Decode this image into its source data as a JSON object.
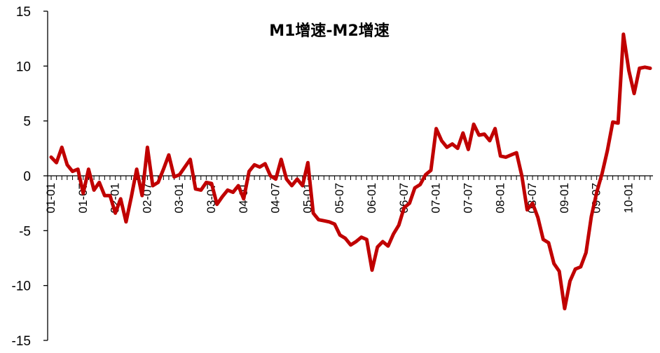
{
  "chart_data": {
    "type": "line",
    "title": "M1增速-M2增速",
    "xlabel": "",
    "ylabel": "",
    "ylim": [
      -15,
      15
    ],
    "yticks": [
      15,
      10,
      5,
      0,
      -5,
      -10,
      -15
    ],
    "xtick_labels": [
      "01-01",
      "01-07",
      "02-01",
      "02-07",
      "03-01",
      "03-07",
      "04-01",
      "04-07",
      "05-01",
      "05-07",
      "06-01",
      "06-07",
      "07-01",
      "07-07",
      "08-01",
      "08-07",
      "09-01",
      "09-07",
      "10-01"
    ],
    "grid": false,
    "legend": "none",
    "series": [
      {
        "color": "#c00000",
        "x": [
          "01-01",
          "01-02",
          "01-03",
          "01-04",
          "01-05",
          "01-06",
          "01-07",
          "01-08",
          "01-09",
          "01-10",
          "01-11",
          "01-12",
          "02-01",
          "02-02",
          "02-03",
          "02-04",
          "02-05",
          "02-06",
          "02-07",
          "02-08",
          "02-09",
          "02-10",
          "02-11",
          "02-12",
          "03-01",
          "03-02",
          "03-03",
          "03-04",
          "03-05",
          "03-06",
          "03-07",
          "03-08",
          "03-09",
          "03-10",
          "03-11",
          "03-12",
          "04-01",
          "04-02",
          "04-03",
          "04-04",
          "04-05",
          "04-06",
          "04-07",
          "04-08",
          "04-09",
          "04-10",
          "04-11",
          "04-12",
          "05-01",
          "05-02",
          "05-03",
          "05-04",
          "05-05",
          "05-06",
          "05-07",
          "05-08",
          "05-09",
          "05-10",
          "05-11",
          "05-12",
          "06-01",
          "06-02",
          "06-03",
          "06-04",
          "06-05",
          "06-06",
          "06-07",
          "06-08",
          "06-09",
          "06-10",
          "06-11",
          "06-12",
          "07-01",
          "07-02",
          "07-03",
          "07-04",
          "07-05",
          "07-06",
          "07-07",
          "07-08",
          "07-09",
          "07-10",
          "07-11",
          "07-12",
          "08-01",
          "08-02",
          "08-03",
          "08-04",
          "08-05",
          "08-06",
          "08-07",
          "08-08",
          "08-09",
          "08-10",
          "08-11",
          "08-12",
          "09-01",
          "09-02",
          "09-03",
          "09-04",
          "09-05",
          "09-06",
          "09-07",
          "09-08",
          "09-09",
          "09-10",
          "09-11",
          "09-12",
          "10-01",
          "10-02",
          "10-03",
          "10-04",
          "10-05"
        ],
        "y": [
          1.7,
          1.2,
          2.6,
          1.0,
          0.4,
          0.6,
          -1.6,
          0.6,
          -1.3,
          -0.6,
          -1.8,
          -1.8,
          -3.4,
          -2.1,
          -4.2,
          -1.9,
          0.6,
          -1.8,
          2.6,
          -0.9,
          -0.6,
          0.6,
          1.9,
          -0.1,
          0.1,
          0.8,
          1.5,
          -1.2,
          -1.3,
          -0.6,
          -0.7,
          -2.6,
          -1.9,
          -1.3,
          -1.5,
          -0.9,
          -2.1,
          0.4,
          1.0,
          0.8,
          1.1,
          0.0,
          -0.3,
          1.5,
          -0.3,
          -0.9,
          -0.3,
          -0.9,
          1.2,
          -3.4,
          -4.0,
          -4.1,
          -4.2,
          -4.4,
          -5.4,
          -5.7,
          -6.3,
          -6.0,
          -5.6,
          -5.8,
          -8.6,
          -6.5,
          -6.0,
          -6.4,
          -5.3,
          -4.5,
          -2.9,
          -2.5,
          -1.1,
          -0.8,
          0.1,
          0.5,
          4.3,
          3.2,
          2.6,
          2.9,
          2.5,
          3.9,
          2.4,
          4.7,
          3.7,
          3.8,
          3.2,
          4.3,
          1.8,
          1.7,
          1.9,
          2.1,
          0.0,
          -3.1,
          -2.5,
          -3.8,
          -5.8,
          -6.1,
          -8.0,
          -8.7,
          -12.1,
          -9.6,
          -8.5,
          -8.3,
          -7.0,
          -3.7,
          -1.5,
          0.2,
          2.3,
          4.9,
          4.8,
          12.9,
          9.6,
          7.5,
          9.8,
          9.9,
          9.8
        ]
      }
    ]
  }
}
